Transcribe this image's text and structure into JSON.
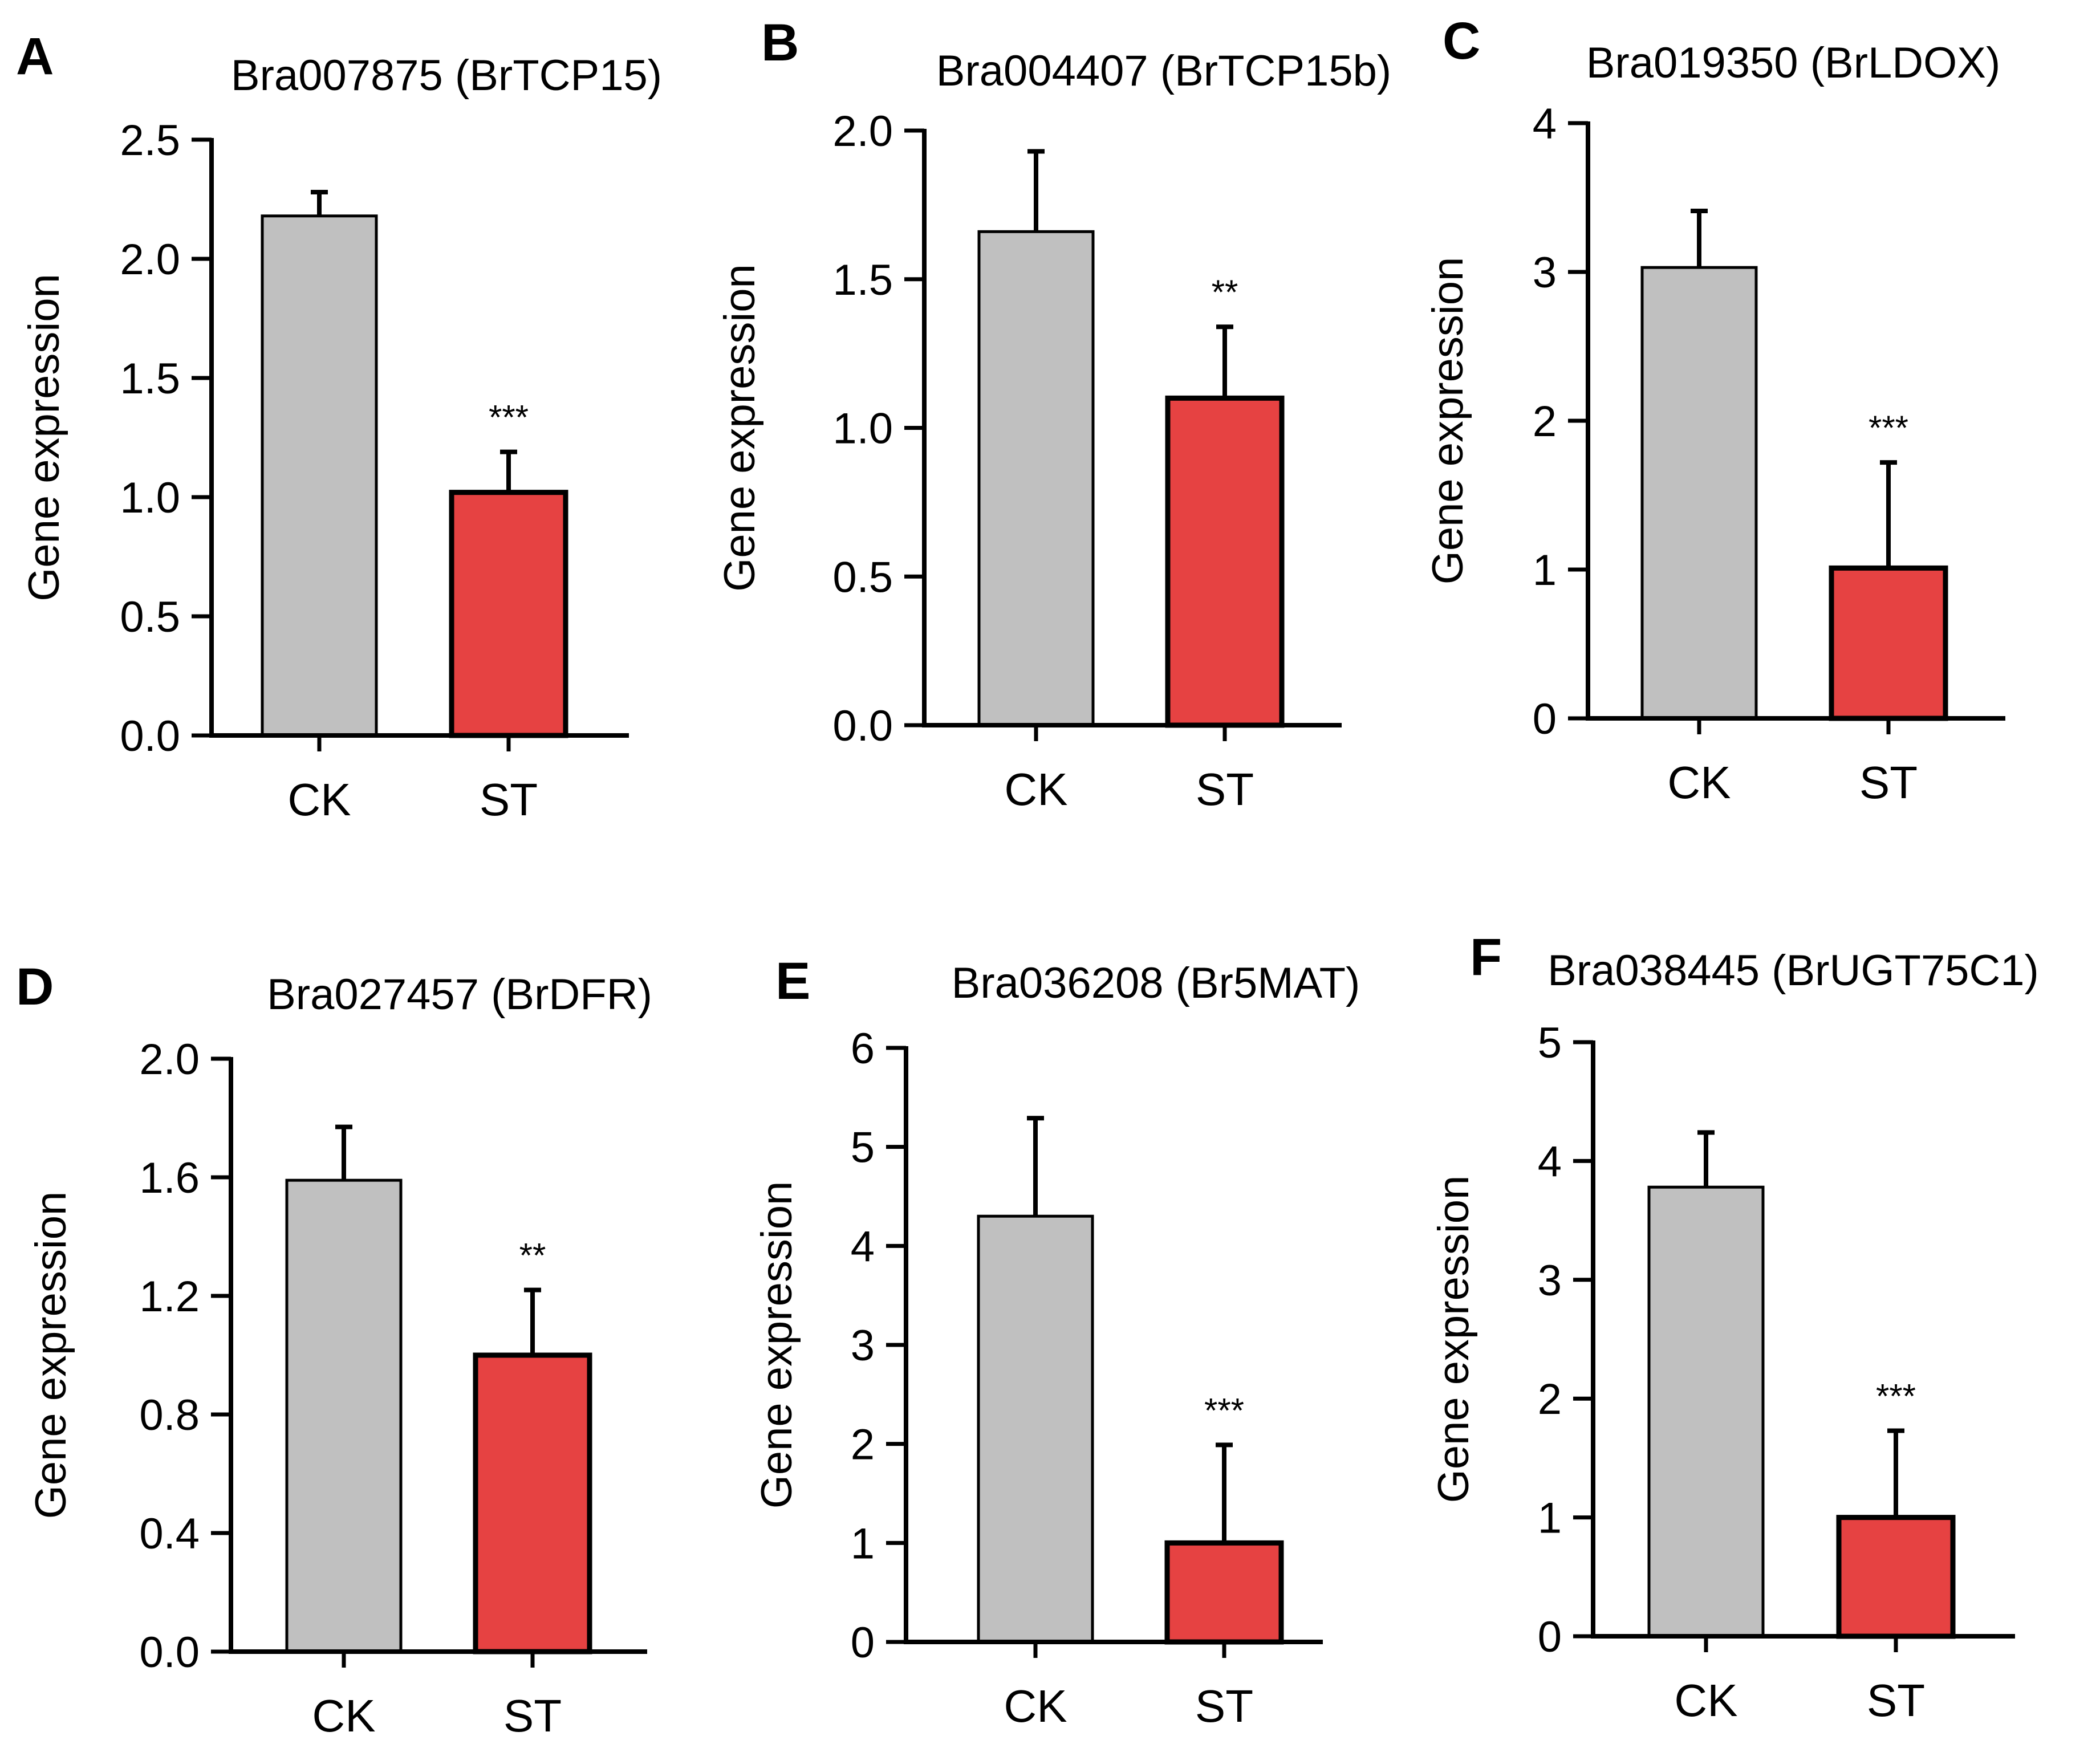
{
  "figure": {
    "background": "#ffffff",
    "colors": {
      "ck": "#c0c0c0",
      "st": "#e64242",
      "axis": "#000000"
    }
  },
  "chart_data": [
    {
      "panel": "A",
      "type": "bar",
      "title": "Bra007875 (BrTCP15)",
      "ylabel": "Gene expression",
      "xlabel": "",
      "categories": [
        "CK",
        "ST"
      ],
      "values": [
        2.18,
        1.02
      ],
      "errors": [
        0.1,
        0.17
      ],
      "significance": [
        "",
        "***"
      ],
      "ylim": [
        0,
        2.5
      ],
      "yticks": [
        0,
        0.5,
        1.0,
        1.5,
        2.0,
        2.5
      ],
      "ytick_labels": [
        "0.0",
        "0.5",
        "1.0",
        "1.5",
        "2.0",
        "2.5"
      ]
    },
    {
      "panel": "B",
      "type": "bar",
      "title": "Bra004407 (BrTCP15b)",
      "ylabel": "Gene expression",
      "xlabel": "",
      "categories": [
        "CK",
        "ST"
      ],
      "values": [
        1.66,
        1.1
      ],
      "errors": [
        0.27,
        0.24
      ],
      "significance": [
        "",
        "**"
      ],
      "ylim": [
        0,
        2.0
      ],
      "yticks": [
        0,
        0.5,
        1.0,
        1.5,
        2.0
      ],
      "ytick_labels": [
        "0.0",
        "0.5",
        "1.0",
        "1.5",
        "2.0"
      ]
    },
    {
      "panel": "C",
      "type": "bar",
      "title": "Bra019350 (BrLDOX)",
      "ylabel": "Gene expression",
      "xlabel": "",
      "categories": [
        "CK",
        "ST"
      ],
      "values": [
        3.03,
        1.01
      ],
      "errors": [
        0.38,
        0.71
      ],
      "significance": [
        "",
        "***"
      ],
      "ylim": [
        0,
        4
      ],
      "yticks": [
        0,
        1,
        2,
        3,
        4
      ],
      "ytick_labels": [
        "0",
        "1",
        "2",
        "3",
        "4"
      ]
    },
    {
      "panel": "D",
      "type": "bar",
      "title": "Bra027457 (BrDFR)",
      "ylabel": "Gene expression",
      "xlabel": "",
      "categories": [
        "CK",
        "ST"
      ],
      "values": [
        1.59,
        1.0
      ],
      "errors": [
        0.18,
        0.22
      ],
      "significance": [
        "",
        "**"
      ],
      "ylim": [
        0,
        2.0
      ],
      "yticks": [
        0,
        0.4,
        0.8,
        1.2,
        1.6,
        2.0
      ],
      "ytick_labels": [
        "0.0",
        "0.4",
        "0.8",
        "1.2",
        "1.6",
        "2.0"
      ]
    },
    {
      "panel": "E",
      "type": "bar",
      "title": "Bra036208 (Br5MAT)",
      "ylabel": "Gene expression",
      "xlabel": "",
      "categories": [
        "CK",
        "ST"
      ],
      "values": [
        4.3,
        1.0
      ],
      "errors": [
        0.99,
        0.99
      ],
      "significance": [
        "",
        "***"
      ],
      "ylim": [
        0,
        6
      ],
      "yticks": [
        0,
        1,
        2,
        3,
        4,
        5,
        6
      ],
      "ytick_labels": [
        "0",
        "1",
        "2",
        "3",
        "4",
        "5",
        "6"
      ]
    },
    {
      "panel": "F",
      "type": "bar",
      "title": "Bra038445 (BrUGT75C1)",
      "ylabel": "Gene expression",
      "xlabel": "",
      "categories": [
        "CK",
        "ST"
      ],
      "values": [
        3.78,
        1.0
      ],
      "errors": [
        0.46,
        0.73
      ],
      "significance": [
        "",
        "***"
      ],
      "ylim": [
        0,
        5
      ],
      "yticks": [
        0,
        1,
        2,
        3,
        4,
        5
      ],
      "ytick_labels": [
        "0",
        "1",
        "2",
        "3",
        "4",
        "5"
      ]
    }
  ]
}
